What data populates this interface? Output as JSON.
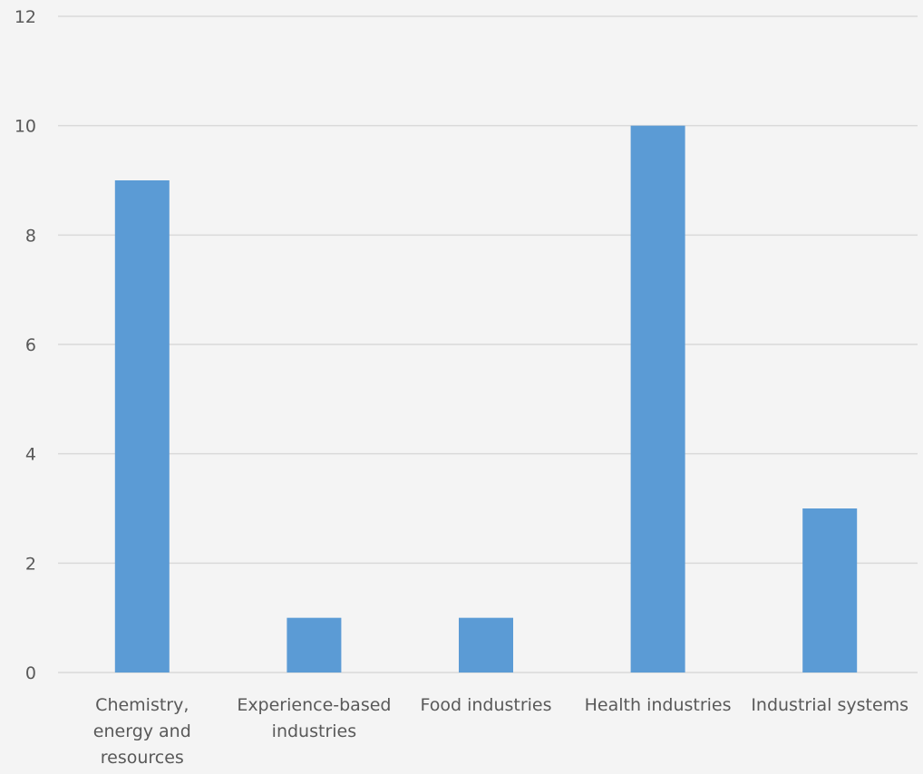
{
  "chart_data": {
    "type": "bar",
    "categories": [
      [
        "Chemistry,",
        "energy and",
        "resources"
      ],
      [
        "Experience-based",
        "industries"
      ],
      [
        "Food industries"
      ],
      [
        "Health industries"
      ],
      [
        "Industrial systems"
      ]
    ],
    "values": [
      9,
      1,
      1,
      10,
      3
    ],
    "yticks": [
      "0",
      "2",
      "4",
      "6",
      "8",
      "10",
      "12"
    ],
    "ylim": [
      0,
      12
    ],
    "title": "",
    "xlabel": "",
    "ylabel": "",
    "grid": true,
    "legend": "none",
    "bar_color": "#5b9bd5"
  }
}
